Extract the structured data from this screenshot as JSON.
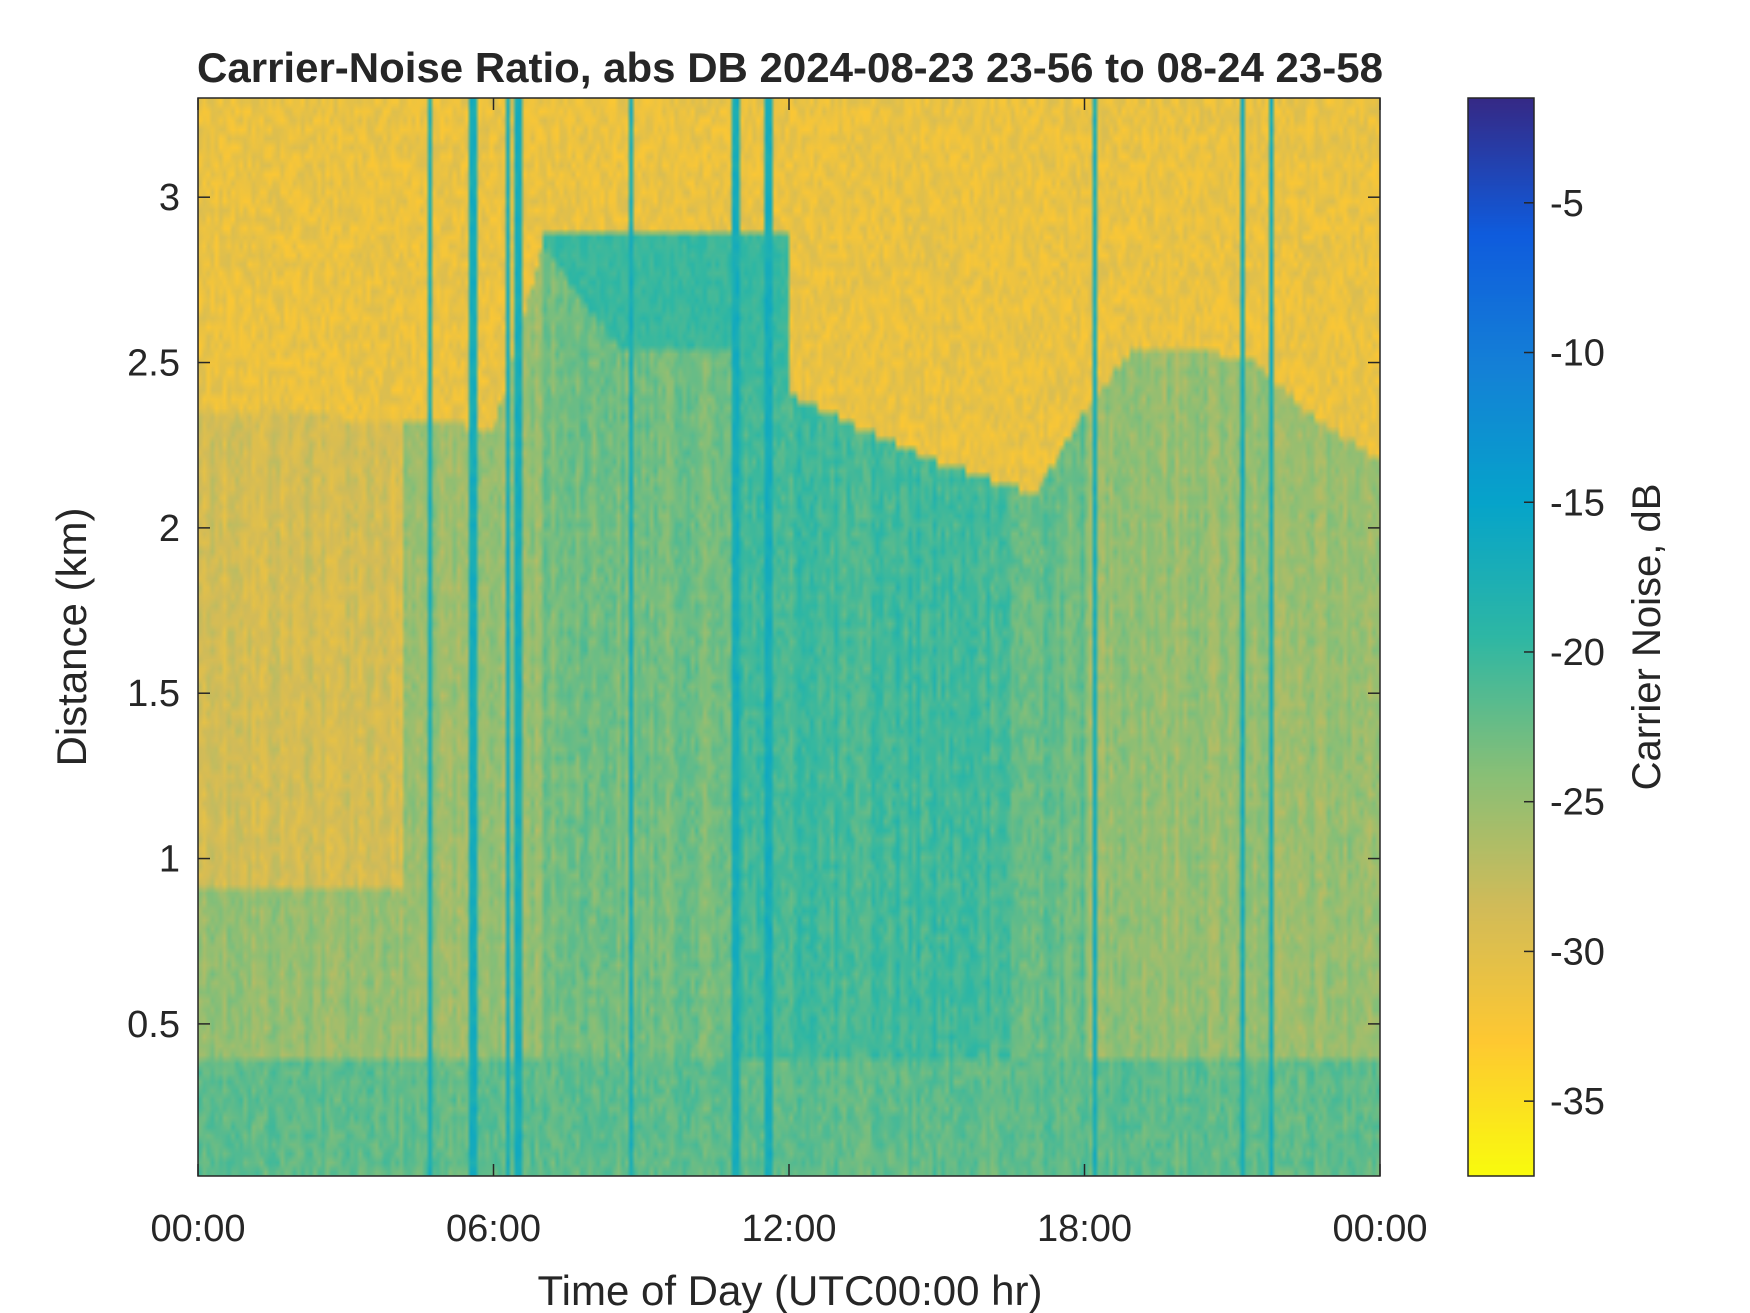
{
  "chart_data": {
    "type": "heatmap",
    "title": "Carrier-Noise Ratio, abs DB 2024-08-23 23-56 to 08-24 23-58",
    "xlabel": "Time of Day (UTC00:00 hr)",
    "ylabel": "Distance (km)",
    "colorbar_label": "Carrier Noise, dB",
    "xlim_hours": [
      0,
      24
    ],
    "ylim_km": [
      0.04,
      3.3
    ],
    "clim_db": [
      -37.5,
      -1.5
    ],
    "x_ticks": [
      {
        "hour": 0,
        "label": "00:00"
      },
      {
        "hour": 6,
        "label": "06:00"
      },
      {
        "hour": 12,
        "label": "12:00"
      },
      {
        "hour": 18,
        "label": "18:00"
      },
      {
        "hour": 24,
        "label": "00:00"
      }
    ],
    "y_ticks": [
      {
        "value": 0.5,
        "label": "0.5"
      },
      {
        "value": 1,
        "label": "1"
      },
      {
        "value": 1.5,
        "label": "1.5"
      },
      {
        "value": 2,
        "label": "2"
      },
      {
        "value": 2.5,
        "label": "2.5"
      },
      {
        "value": 3,
        "label": "3"
      }
    ],
    "colorbar_ticks": [
      {
        "value": -5,
        "label": "-5"
      },
      {
        "value": -10,
        "label": "-10"
      },
      {
        "value": -15,
        "label": "-15"
      },
      {
        "value": -20,
        "label": "-20"
      },
      {
        "value": -25,
        "label": "-25"
      },
      {
        "value": -30,
        "label": "-30"
      },
      {
        "value": -35,
        "label": "-35"
      }
    ],
    "colormap": [
      "#352a87",
      "#0f5cdd",
      "#1481d6",
      "#06a4ca",
      "#2eb7a4",
      "#87bf77",
      "#d1bb59",
      "#fec832",
      "#f9fb0e"
    ],
    "grid": false,
    "regions": {
      "upper_layer_boundary_km": [
        [
          0,
          2.35
        ],
        [
          4,
          2.33
        ],
        [
          6,
          2.3
        ],
        [
          7,
          2.85
        ],
        [
          8.5,
          2.55
        ],
        [
          9.5,
          2.55
        ],
        [
          10.5,
          2.55
        ],
        [
          11.5,
          2.5
        ],
        [
          12,
          2.4
        ],
        [
          13.5,
          2.3
        ],
        [
          15,
          2.2
        ],
        [
          17,
          2.1
        ],
        [
          18,
          2.35
        ],
        [
          19,
          2.55
        ],
        [
          20,
          2.55
        ],
        [
          21.5,
          2.5
        ],
        [
          22.5,
          2.35
        ],
        [
          24,
          2.2
        ]
      ],
      "mid_band_km": [
        0.4,
        2.3
      ],
      "lower_band_km": [
        0.04,
        0.4
      ],
      "cloud_patch": {
        "hours": [
          7,
          12
        ],
        "km": [
          2.3,
          2.9
        ],
        "db": -20
      },
      "strong_return_streaks_hours": [
        4.7,
        5.6,
        6.3,
        6.5,
        8.8,
        10.9,
        11.6,
        18.2,
        21.2,
        21.8
      ]
    }
  }
}
